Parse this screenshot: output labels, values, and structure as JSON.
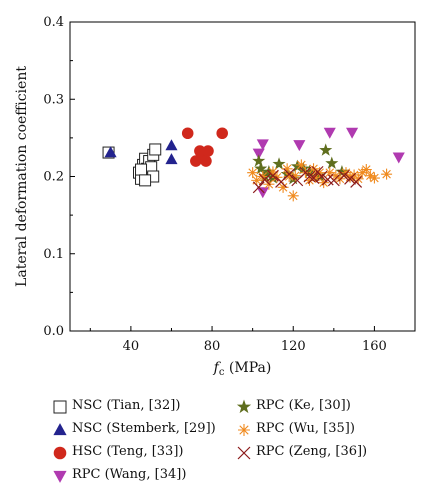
{
  "chart_data": {
    "type": "scatter",
    "xlabel_main": "f",
    "xlabel_sub": "c",
    "xlabel_unit": " (MPa)",
    "ylabel": "Lateral deformation coefficient",
    "xlim": [
      10,
      180
    ],
    "ylim": [
      0.0,
      0.4
    ],
    "xticks": [
      "40",
      "80",
      "120",
      "160"
    ],
    "xtick_values": [
      40,
      80,
      120,
      160
    ],
    "yticks": [
      "0.0",
      "0.1",
      "0.2",
      "0.3",
      "0.4"
    ],
    "ytick_values": [
      0.0,
      0.1,
      0.2,
      0.3,
      0.4
    ],
    "grid": false,
    "legend_position": "bottom",
    "series": [
      {
        "name": "NSC (Tian, [32])",
        "marker": "square-open",
        "color": "#222222",
        "points": [
          [
            29,
            0.231
          ],
          [
            44,
            0.205
          ],
          [
            45,
            0.197
          ],
          [
            46,
            0.215
          ],
          [
            47,
            0.223
          ],
          [
            48,
            0.21
          ],
          [
            49,
            0.22
          ],
          [
            50,
            0.212
          ],
          [
            51,
            0.228
          ],
          [
            51,
            0.2
          ],
          [
            52,
            0.235
          ],
          [
            45,
            0.209
          ],
          [
            47,
            0.195
          ]
        ]
      },
      {
        "name": "NSC (Stemberk, [29])",
        "marker": "triangle-up",
        "color": "#23238e",
        "points": [
          [
            30,
            0.231
          ],
          [
            60,
            0.24
          ],
          [
            60,
            0.222
          ]
        ]
      },
      {
        "name": "HSC (Teng, [33])",
        "marker": "circle",
        "color": "#d0281c",
        "points": [
          [
            68,
            0.256
          ],
          [
            72,
            0.22
          ],
          [
            74,
            0.233
          ],
          [
            75,
            0.225
          ],
          [
            77,
            0.22
          ],
          [
            78,
            0.233
          ],
          [
            85,
            0.256
          ]
        ]
      },
      {
        "name": "RPC (Wang, [34])",
        "marker": "triangle-down",
        "color": "#b03ab0",
        "points": [
          [
            103,
            0.23
          ],
          [
            105,
            0.242
          ],
          [
            105,
            0.18
          ],
          [
            123,
            0.241
          ],
          [
            138,
            0.257
          ],
          [
            149,
            0.257
          ],
          [
            172,
            0.225
          ]
        ]
      },
      {
        "name": "RPC (Ke, [30])",
        "marker": "star",
        "color": "#5f6e1e",
        "points": [
          [
            103,
            0.22
          ],
          [
            104,
            0.21
          ],
          [
            106,
            0.2
          ],
          [
            108,
            0.206
          ],
          [
            110,
            0.198
          ],
          [
            113,
            0.216
          ],
          [
            117,
            0.203
          ],
          [
            120,
            0.197
          ],
          [
            122,
            0.213
          ],
          [
            125,
            0.21
          ],
          [
            128,
            0.206
          ],
          [
            133,
            0.201
          ],
          [
            136,
            0.234
          ],
          [
            139,
            0.217
          ],
          [
            144,
            0.206
          ]
        ]
      },
      {
        "name": "RPC (Wu, [35])",
        "marker": "asterisk",
        "color": "#f08a1e",
        "points": [
          [
            100,
            0.205
          ],
          [
            102,
            0.195
          ],
          [
            105,
            0.2
          ],
          [
            108,
            0.19
          ],
          [
            110,
            0.206
          ],
          [
            112,
            0.199
          ],
          [
            115,
            0.186
          ],
          [
            117,
            0.21
          ],
          [
            118,
            0.2
          ],
          [
            120,
            0.175
          ],
          [
            121,
            0.201
          ],
          [
            124,
            0.215
          ],
          [
            126,
            0.205
          ],
          [
            128,
            0.195
          ],
          [
            130,
            0.21
          ],
          [
            131,
            0.199
          ],
          [
            133,
            0.205
          ],
          [
            135,
            0.192
          ],
          [
            138,
            0.205
          ],
          [
            141,
            0.201
          ],
          [
            143,
            0.197
          ],
          [
            146,
            0.205
          ],
          [
            148,
            0.199
          ],
          [
            150,
            0.202
          ],
          [
            152,
            0.197
          ],
          [
            154,
            0.205
          ],
          [
            156,
            0.209
          ],
          [
            158,
            0.201
          ],
          [
            160,
            0.198
          ],
          [
            166,
            0.203
          ]
        ]
      },
      {
        "name": "RPC (Zeng, [36])",
        "marker": "x",
        "color": "#8b1a1a",
        "points": [
          [
            103,
            0.186
          ],
          [
            106,
            0.196
          ],
          [
            110,
            0.201
          ],
          [
            114,
            0.193
          ],
          [
            118,
            0.203
          ],
          [
            122,
            0.195
          ],
          [
            126,
            0.205
          ],
          [
            128,
            0.2
          ],
          [
            130,
            0.198
          ],
          [
            132,
            0.206
          ],
          [
            134,
            0.2
          ],
          [
            137,
            0.196
          ],
          [
            140,
            0.195
          ],
          [
            145,
            0.201
          ],
          [
            148,
            0.197
          ],
          [
            151,
            0.193
          ]
        ]
      }
    ]
  }
}
